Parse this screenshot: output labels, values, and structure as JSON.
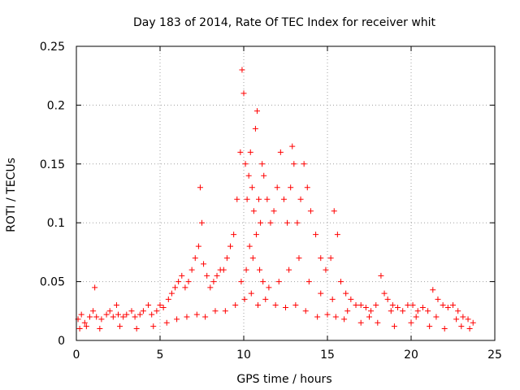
{
  "chart_data": {
    "type": "scatter",
    "title": "Day 183 of 2014, Rate Of TEC Index for receiver whit",
    "xlabel": "GPS time / hours",
    "ylabel": "ROTI / TECUs",
    "xlim": [
      0,
      25
    ],
    "ylim": [
      0,
      0.25
    ],
    "x_ticks": [
      0,
      5,
      10,
      15,
      20,
      25
    ],
    "x_tick_labels": [
      "0",
      "5",
      "10",
      "15",
      "20",
      "25"
    ],
    "y_ticks": [
      0,
      0.05,
      0.1,
      0.15,
      0.2,
      0.25
    ],
    "y_tick_labels": [
      "0",
      "0.05",
      "0.1",
      "0.15",
      "0.2",
      "0.25"
    ],
    "grid": true,
    "marker": "+",
    "color": "#ff0000",
    "series": [
      {
        "name": "ROTI",
        "x": [
          0.1,
          0.3,
          0.5,
          0.8,
          1.0,
          1.1,
          1.2,
          1.5,
          1.8,
          2.0,
          2.2,
          2.4,
          2.5,
          2.8,
          3.0,
          3.3,
          3.5,
          3.8,
          4.0,
          4.3,
          4.5,
          4.8,
          5.0,
          5.2,
          5.5,
          5.7,
          5.9,
          6.1,
          6.3,
          6.5,
          6.7,
          6.9,
          7.1,
          7.3,
          7.4,
          7.5,
          7.6,
          7.8,
          8.0,
          8.2,
          8.4,
          8.6,
          8.8,
          9.0,
          9.2,
          9.4,
          9.6,
          9.8,
          9.9,
          10.0,
          10.1,
          10.2,
          10.3,
          10.4,
          10.5,
          10.6,
          10.7,
          10.8,
          10.9,
          11.0,
          11.1,
          11.2,
          11.4,
          11.6,
          11.8,
          12.0,
          12.2,
          12.4,
          12.6,
          12.8,
          12.9,
          13.0,
          13.2,
          13.4,
          13.6,
          13.8,
          14.0,
          14.3,
          14.6,
          14.9,
          15.2,
          15.4,
          15.6,
          15.8,
          16.1,
          16.4,
          16.7,
          17.0,
          17.3,
          17.6,
          17.9,
          18.2,
          18.4,
          18.6,
          18.9,
          19.2,
          19.5,
          19.8,
          20.1,
          20.4,
          20.7,
          21.0,
          21.3,
          21.6,
          21.9,
          22.2,
          22.5,
          22.8,
          23.1,
          23.4,
          23.7,
          0.2,
          0.6,
          1.4,
          2.6,
          3.6,
          4.6,
          5.4,
          6.0,
          6.6,
          7.2,
          7.7,
          8.3,
          8.9,
          9.5,
          10.05,
          10.45,
          10.85,
          11.3,
          11.9,
          12.5,
          13.1,
          13.7,
          14.4,
          15.0,
          15.5,
          16.0,
          17.0,
          18.0,
          19.0,
          20.0,
          21.1,
          22.0,
          23.0,
          23.5,
          9.85,
          10.15,
          10.35,
          10.55,
          10.75,
          10.95,
          11.15,
          11.5,
          12.1,
          12.7,
          13.3,
          13.9,
          14.6,
          15.3,
          16.2,
          17.5,
          18.8,
          20.3,
          21.5,
          22.7
        ],
        "y": [
          0.018,
          0.022,
          0.015,
          0.02,
          0.025,
          0.045,
          0.02,
          0.018,
          0.022,
          0.025,
          0.02,
          0.03,
          0.022,
          0.02,
          0.022,
          0.025,
          0.02,
          0.022,
          0.025,
          0.03,
          0.022,
          0.025,
          0.03,
          0.028,
          0.035,
          0.04,
          0.045,
          0.05,
          0.055,
          0.045,
          0.05,
          0.06,
          0.07,
          0.08,
          0.13,
          0.1,
          0.065,
          0.055,
          0.045,
          0.05,
          0.055,
          0.06,
          0.06,
          0.07,
          0.08,
          0.09,
          0.12,
          0.16,
          0.23,
          0.21,
          0.15,
          0.12,
          0.14,
          0.16,
          0.13,
          0.11,
          0.18,
          0.195,
          0.12,
          0.1,
          0.15,
          0.14,
          0.12,
          0.1,
          0.11,
          0.13,
          0.16,
          0.12,
          0.1,
          0.13,
          0.165,
          0.15,
          0.1,
          0.12,
          0.15,
          0.13,
          0.11,
          0.09,
          0.07,
          0.06,
          0.07,
          0.11,
          0.09,
          0.05,
          0.04,
          0.035,
          0.03,
          0.03,
          0.028,
          0.025,
          0.03,
          0.055,
          0.04,
          0.035,
          0.03,
          0.028,
          0.025,
          0.03,
          0.03,
          0.025,
          0.028,
          0.025,
          0.043,
          0.035,
          0.03,
          0.028,
          0.03,
          0.025,
          0.02,
          0.018,
          0.015,
          0.01,
          0.012,
          0.01,
          0.012,
          0.01,
          0.012,
          0.015,
          0.018,
          0.02,
          0.022,
          0.02,
          0.025,
          0.025,
          0.03,
          0.035,
          0.04,
          0.03,
          0.035,
          0.03,
          0.028,
          0.03,
          0.025,
          0.02,
          0.022,
          0.02,
          0.018,
          0.015,
          0.015,
          0.012,
          0.015,
          0.012,
          0.01,
          0.012,
          0.01,
          0.05,
          0.06,
          0.08,
          0.07,
          0.09,
          0.06,
          0.05,
          0.045,
          0.05,
          0.06,
          0.07,
          0.05,
          0.04,
          0.035,
          0.025,
          0.02,
          0.025,
          0.02,
          0.02,
          0.018
        ]
      }
    ]
  }
}
